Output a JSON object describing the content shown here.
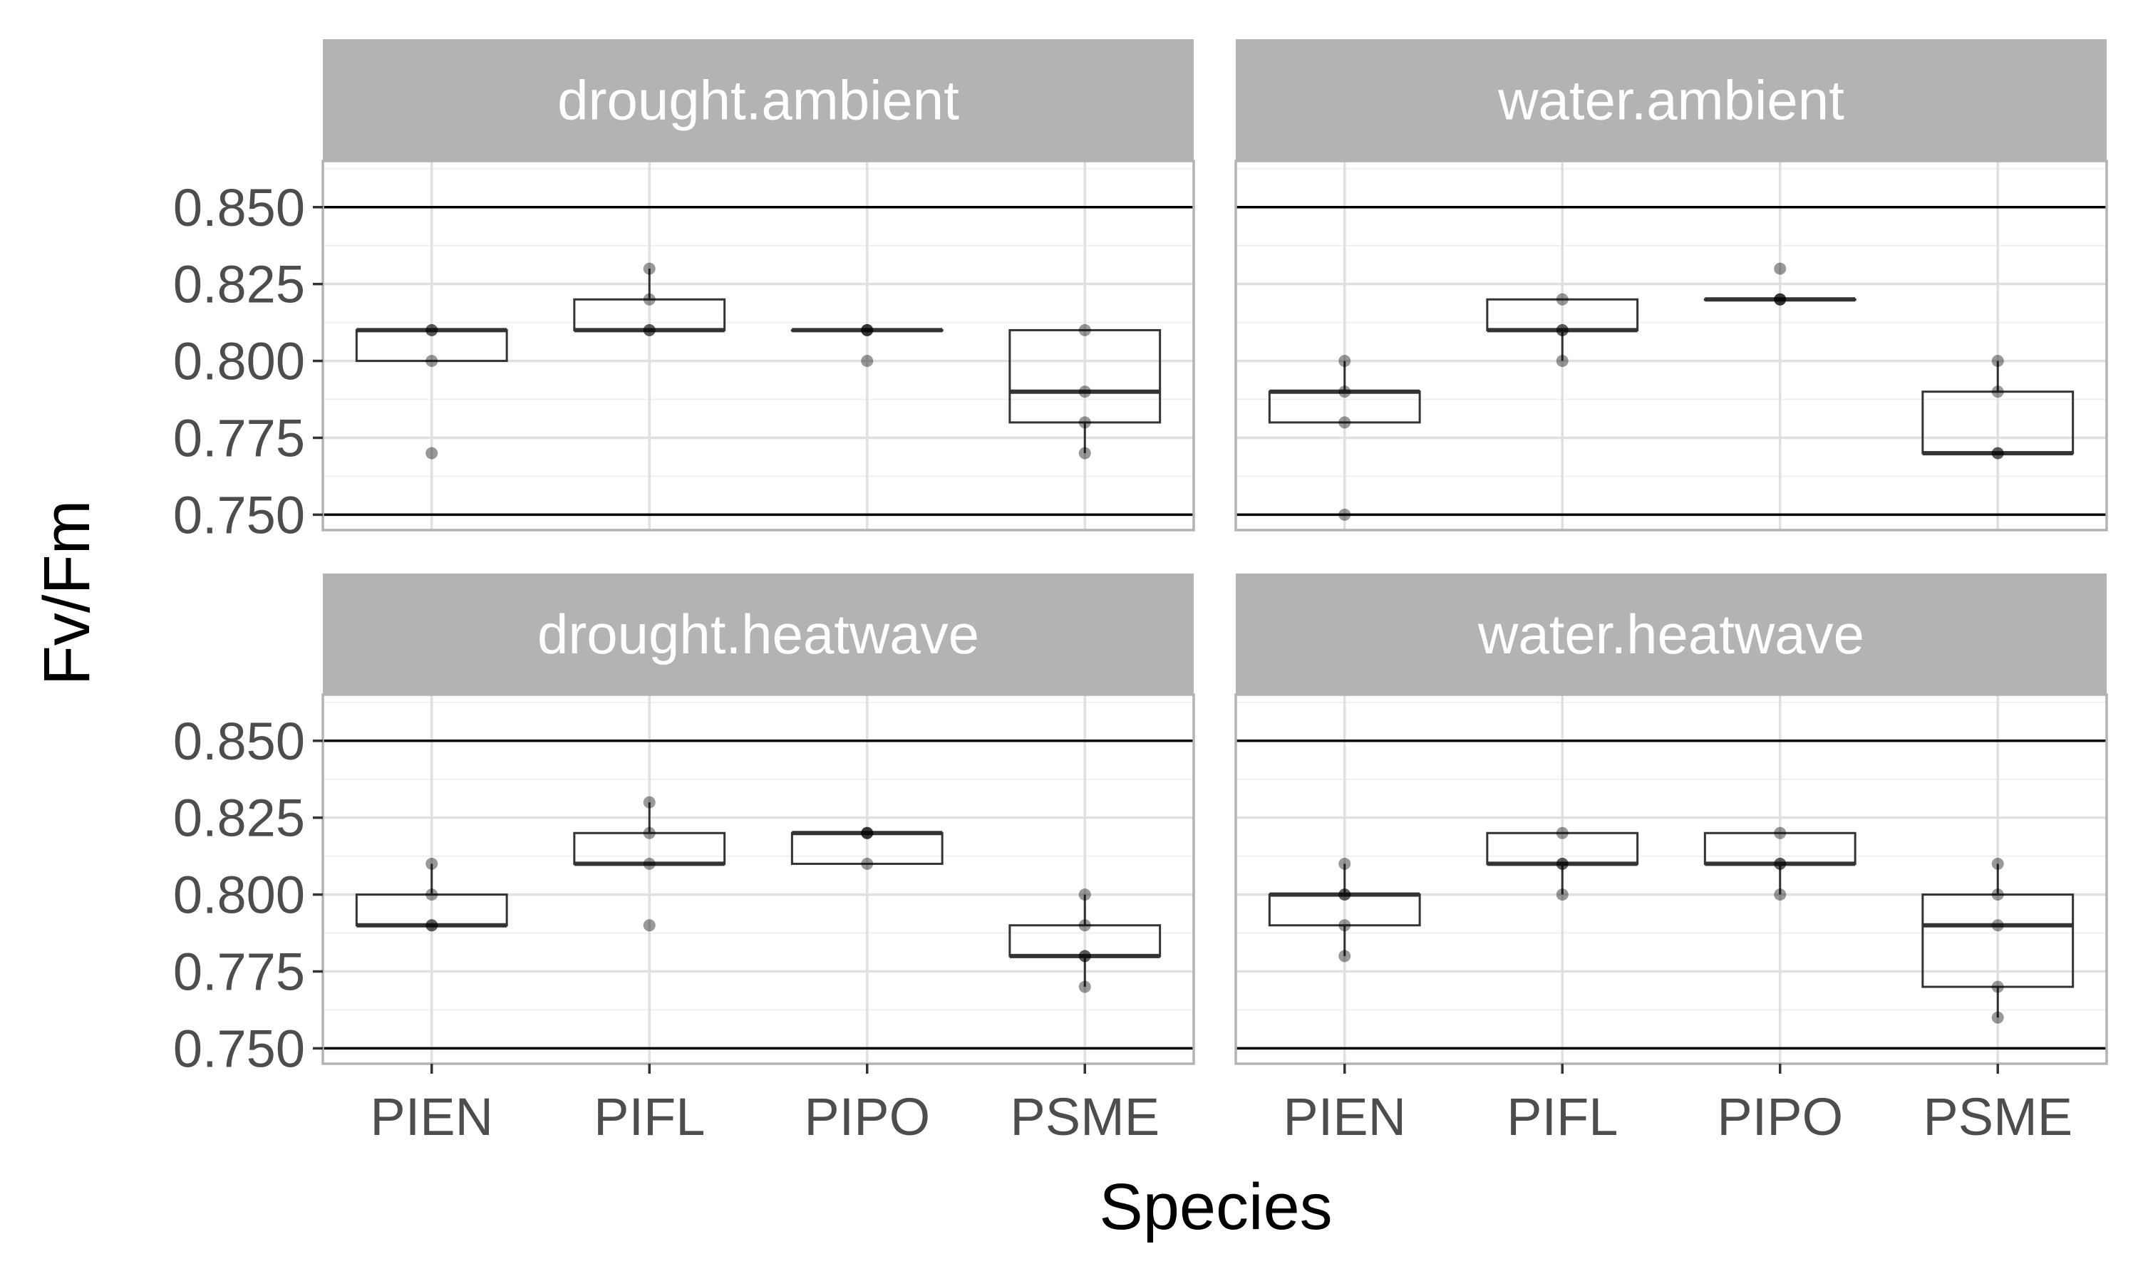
{
  "chart_data": {
    "type": "box",
    "xlabel": "Species",
    "ylabel": "Fv/Fm",
    "ylim": [
      0.745,
      0.865
    ],
    "y_ticks": [
      "0.750",
      "0.775",
      "0.800",
      "0.825",
      "0.850"
    ],
    "y_tick_values": [
      0.75,
      0.775,
      0.8,
      0.825,
      0.85
    ],
    "reference_lines": [
      0.75,
      0.85
    ],
    "categories": [
      "PIEN",
      "PIFL",
      "PIPO",
      "PSME"
    ],
    "grid": true,
    "colors": {
      "strip": "#b3b3b3",
      "border": "#b3b3b3",
      "grid": "#e0e0e0",
      "box": "#333333"
    },
    "facets": [
      {
        "label": "drought.ambient",
        "boxes": [
          {
            "category": "PIEN",
            "lower": 0.8,
            "q1": 0.8,
            "median": 0.81,
            "q3": 0.81,
            "upper": 0.81,
            "points": [
              0.81,
              0.81,
              0.8,
              0.77
            ]
          },
          {
            "category": "PIFL",
            "lower": 0.81,
            "q1": 0.81,
            "median": 0.81,
            "q3": 0.82,
            "upper": 0.83,
            "points": [
              0.83,
              0.82,
              0.81,
              0.81
            ]
          },
          {
            "category": "PIPO",
            "lower": 0.81,
            "q1": 0.81,
            "median": 0.81,
            "q3": 0.81,
            "upper": 0.81,
            "points": [
              0.81,
              0.81,
              0.81,
              0.8
            ]
          },
          {
            "category": "PSME",
            "lower": 0.77,
            "q1": 0.78,
            "median": 0.79,
            "q3": 0.81,
            "upper": 0.81,
            "points": [
              0.81,
              0.79,
              0.78,
              0.77
            ]
          }
        ]
      },
      {
        "label": "water.ambient",
        "boxes": [
          {
            "category": "PIEN",
            "lower": 0.78,
            "q1": 0.78,
            "median": 0.79,
            "q3": 0.79,
            "upper": 0.8,
            "points": [
              0.8,
              0.79,
              0.78,
              0.75
            ]
          },
          {
            "category": "PIFL",
            "lower": 0.8,
            "q1": 0.81,
            "median": 0.81,
            "q3": 0.82,
            "upper": 0.82,
            "points": [
              0.82,
              0.81,
              0.81,
              0.8
            ]
          },
          {
            "category": "PIPO",
            "lower": 0.82,
            "q1": 0.82,
            "median": 0.82,
            "q3": 0.82,
            "upper": 0.82,
            "points": [
              0.83,
              0.82,
              0.82,
              0.82
            ]
          },
          {
            "category": "PSME",
            "lower": 0.77,
            "q1": 0.77,
            "median": 0.77,
            "q3": 0.79,
            "upper": 0.8,
            "points": [
              0.8,
              0.79,
              0.77,
              0.77
            ]
          }
        ]
      },
      {
        "label": "drought.heatwave",
        "boxes": [
          {
            "category": "PIEN",
            "lower": 0.79,
            "q1": 0.79,
            "median": 0.79,
            "q3": 0.8,
            "upper": 0.81,
            "points": [
              0.81,
              0.8,
              0.79,
              0.79
            ]
          },
          {
            "category": "PIFL",
            "lower": 0.81,
            "q1": 0.81,
            "median": 0.81,
            "q3": 0.82,
            "upper": 0.83,
            "points": [
              0.83,
              0.82,
              0.81,
              0.79
            ]
          },
          {
            "category": "PIPO",
            "lower": 0.81,
            "q1": 0.81,
            "median": 0.82,
            "q3": 0.82,
            "upper": 0.82,
            "points": [
              0.82,
              0.82,
              0.82,
              0.81
            ]
          },
          {
            "category": "PSME",
            "lower": 0.77,
            "q1": 0.78,
            "median": 0.78,
            "q3": 0.79,
            "upper": 0.8,
            "points": [
              0.8,
              0.79,
              0.78,
              0.78,
              0.77
            ]
          }
        ]
      },
      {
        "label": "water.heatwave",
        "boxes": [
          {
            "category": "PIEN",
            "lower": 0.78,
            "q1": 0.79,
            "median": 0.8,
            "q3": 0.8,
            "upper": 0.81,
            "points": [
              0.81,
              0.8,
              0.8,
              0.79,
              0.78
            ]
          },
          {
            "category": "PIFL",
            "lower": 0.8,
            "q1": 0.81,
            "median": 0.81,
            "q3": 0.82,
            "upper": 0.82,
            "points": [
              0.82,
              0.81,
              0.81,
              0.8
            ]
          },
          {
            "category": "PIPO",
            "lower": 0.8,
            "q1": 0.81,
            "median": 0.81,
            "q3": 0.82,
            "upper": 0.82,
            "points": [
              0.82,
              0.81,
              0.81,
              0.8
            ]
          },
          {
            "category": "PSME",
            "lower": 0.76,
            "q1": 0.77,
            "median": 0.79,
            "q3": 0.8,
            "upper": 0.81,
            "points": [
              0.81,
              0.8,
              0.79,
              0.77,
              0.76
            ]
          }
        ]
      }
    ]
  }
}
